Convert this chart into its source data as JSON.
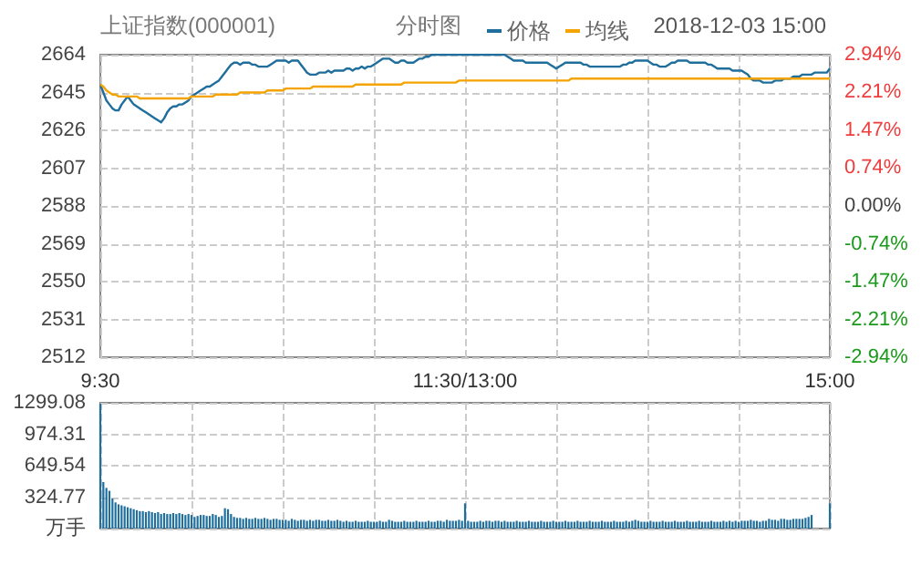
{
  "chart_data": [
    {
      "type": "line",
      "title": "上证指数(000001)",
      "subtitle": "分时图",
      "annotations": [
        "2018-12-03 15:00"
      ],
      "legend": "top right",
      "marker": "none",
      "grid": true,
      "categories": [
        "9:30",
        null,
        null,
        null,
        null,
        null,
        null,
        null,
        null,
        null,
        null,
        null,
        null,
        null,
        null,
        null,
        null,
        null,
        null,
        null,
        null,
        null,
        null,
        null,
        null,
        null,
        null,
        null,
        null,
        null,
        null,
        null,
        null,
        null,
        null,
        null,
        null,
        null,
        null,
        null,
        null,
        null,
        null,
        null,
        null,
        null,
        null,
        null,
        null,
        null,
        null,
        null,
        null,
        null,
        null,
        null,
        null,
        null,
        null,
        null,
        null,
        null,
        null,
        null,
        null,
        null,
        null,
        null,
        null,
        null,
        null,
        null,
        null,
        null,
        null,
        null,
        null,
        null,
        null,
        null,
        null,
        null,
        null,
        null,
        null,
        null,
        null,
        null,
        null,
        null,
        null,
        null,
        null,
        null,
        null,
        null,
        null,
        null,
        null,
        null,
        null,
        null,
        null,
        null,
        null,
        null,
        null,
        null,
        null,
        null,
        null,
        null,
        null,
        null,
        null,
        null,
        null,
        null,
        null,
        null,
        "11:30/13:00",
        null,
        null,
        null,
        null,
        null,
        null,
        null,
        null,
        null,
        null,
        null,
        null,
        null,
        null,
        null,
        null,
        null,
        null,
        null,
        null,
        null,
        null,
        null,
        null,
        null,
        null,
        null,
        null,
        null,
        null,
        null,
        null,
        null,
        null,
        null,
        null,
        null,
        null,
        null,
        null,
        null,
        null,
        null,
        null,
        null,
        null,
        null,
        null,
        null,
        null,
        null,
        null,
        null,
        null,
        null,
        null,
        null,
        null,
        null,
        null,
        null,
        null,
        null,
        null,
        null,
        null,
        null,
        null,
        null,
        null,
        null,
        null,
        null,
        null,
        null,
        null,
        null,
        null,
        null,
        null,
        null,
        null,
        null,
        null,
        null,
        null,
        null,
        null,
        null,
        null,
        null,
        null,
        null,
        null,
        null,
        null,
        null,
        null,
        null,
        null,
        null,
        null,
        null,
        null,
        null,
        null,
        null,
        null,
        null,
        null,
        null,
        null,
        null,
        null,
        null,
        null,
        null,
        null,
        null,
        "15:00"
      ],
      "ylim": [
        2512,
        2664
      ],
      "yticks": [
        2512,
        2531,
        2550,
        2569,
        2588,
        2607,
        2626,
        2645,
        2664
      ],
      "y2lim": [
        -2.94,
        2.94
      ],
      "y2ticks": [
        {
          "value": -2.94,
          "label": "-2.94%"
        },
        {
          "value": -2.21,
          "label": "-2.21%"
        },
        {
          "value": -1.47,
          "label": "-1.47%"
        },
        {
          "value": -0.74,
          "label": "-0.74%"
        },
        {
          "value": 0,
          "label": "0.00%"
        },
        {
          "value": 0.74,
          "label": "0.74%"
        },
        {
          "value": 1.47,
          "label": "1.47%"
        },
        {
          "value": 2.21,
          "label": "2.21%"
        },
        {
          "value": 2.94,
          "label": "2.94%"
        }
      ],
      "series": [
        {
          "name": "价格",
          "color": "#1f6e9c",
          "values": [
            2649,
            2645,
            2641,
            2639,
            2637,
            2636,
            2636,
            2639,
            2641,
            2643,
            2641,
            2639,
            2638,
            2637,
            2636,
            2635,
            2634,
            2633,
            2632,
            2631,
            2630,
            2632,
            2635,
            2637,
            2638,
            2638,
            2639,
            2639,
            2640,
            2641,
            2643,
            2644,
            2645,
            2646,
            2647,
            2648,
            2648,
            2649,
            2650,
            2651,
            2653,
            2655,
            2657,
            2659,
            2660,
            2660,
            2659,
            2660,
            2660,
            2660,
            2659,
            2659,
            2658,
            2658,
            2658,
            2658,
            2659,
            2660,
            2661,
            2661,
            2661,
            2661,
            2660,
            2661,
            2661,
            2661,
            2659,
            2657,
            2655,
            2654,
            2654,
            2654,
            2655,
            2655,
            2655,
            2656,
            2655,
            2656,
            2656,
            2656,
            2656,
            2657,
            2657,
            2656,
            2657,
            2657,
            2658,
            2657,
            2658,
            2658,
            2659,
            2660,
            2661,
            2662,
            2662,
            2662,
            2661,
            2660,
            2660,
            2661,
            2661,
            2660,
            2660,
            2660,
            2661,
            2662,
            2662,
            2663,
            2663,
            2664,
            2664,
            2664,
            2664,
            2664,
            2664,
            2664,
            2664,
            2664,
            2664,
            2664,
            2664,
            2664,
            2664,
            2664,
            2664,
            2664,
            2664,
            2664,
            2664,
            2664,
            2664,
            2664,
            2664,
            2664,
            2663,
            2662,
            2661,
            2661,
            2661,
            2661,
            2660,
            2660,
            2660,
            2660,
            2660,
            2660,
            2660,
            2660,
            2659,
            2658,
            2657,
            2658,
            2659,
            2660,
            2660,
            2660,
            2660,
            2660,
            2660,
            2659,
            2659,
            2658,
            2658,
            2658,
            2658,
            2658,
            2658,
            2658,
            2658,
            2658,
            2658,
            2658,
            2659,
            2659,
            2660,
            2660,
            2661,
            2661,
            2661,
            2661,
            2661,
            2660,
            2659,
            2659,
            2658,
            2658,
            2658,
            2659,
            2660,
            2660,
            2661,
            2661,
            2661,
            2661,
            2660,
            2660,
            2660,
            2660,
            2660,
            2660,
            2659,
            2659,
            2658,
            2657,
            2657,
            2657,
            2657,
            2657,
            2656,
            2656,
            2656,
            2656,
            2655,
            2654,
            2652,
            2651,
            2651,
            2651,
            2650,
            2650,
            2650,
            2650,
            2651,
            2651,
            2651,
            2652,
            2652,
            2652,
            2653,
            2653,
            2653,
            2654,
            2654,
            2654,
            2654,
            2655,
            2655,
            2655,
            2655,
            2655,
            2657
          ]
        },
        {
          "name": "均线",
          "color": "#f5a300",
          "values": [
            2649,
            2648,
            2646,
            2645,
            2644,
            2644,
            2643,
            2643,
            2643,
            2643,
            2643,
            2643,
            2643,
            2642,
            2642,
            2642,
            2642,
            2642,
            2642,
            2642,
            2642,
            2642,
            2642,
            2642,
            2642,
            2642,
            2642,
            2642,
            2642,
            2642,
            2643,
            2643,
            2643,
            2643,
            2643,
            2643,
            2643,
            2643,
            2644,
            2644,
            2644,
            2644,
            2644,
            2644,
            2644,
            2644,
            2645,
            2645,
            2645,
            2645,
            2645,
            2645,
            2645,
            2645,
            2645,
            2646,
            2646,
            2646,
            2646,
            2646,
            2646,
            2647,
            2647,
            2647,
            2647,
            2647,
            2647,
            2647,
            2647,
            2647,
            2648,
            2648,
            2648,
            2648,
            2648,
            2648,
            2648,
            2648,
            2648,
            2648,
            2648,
            2648,
            2648,
            2648,
            2649,
            2649,
            2649,
            2649,
            2649,
            2649,
            2649,
            2649,
            2649,
            2649,
            2649,
            2649,
            2649,
            2649,
            2649,
            2649,
            2650,
            2650,
            2650,
            2650,
            2650,
            2650,
            2650,
            2650,
            2650,
            2650,
            2650,
            2650,
            2650,
            2650,
            2650,
            2650,
            2650,
            2650,
            2651,
            2651,
            2651,
            2651,
            2651,
            2651,
            2651,
            2651,
            2651,
            2651,
            2651,
            2651,
            2651,
            2651,
            2651,
            2651,
            2651,
            2651,
            2651,
            2651,
            2651,
            2651,
            2651,
            2651,
            2651,
            2651,
            2651,
            2651,
            2651,
            2651,
            2651,
            2651,
            2651,
            2651,
            2651,
            2651,
            2651,
            2652,
            2652,
            2652,
            2652,
            2652,
            2652,
            2652,
            2652,
            2652,
            2652,
            2652,
            2652,
            2652,
            2652,
            2652,
            2652,
            2652,
            2652,
            2652,
            2652,
            2652,
            2652,
            2652,
            2652,
            2652,
            2652,
            2652,
            2652,
            2652,
            2652,
            2652,
            2652,
            2652,
            2652,
            2652,
            2652,
            2652,
            2652,
            2652,
            2652,
            2652,
            2652,
            2652,
            2652,
            2652,
            2652,
            2652,
            2652,
            2652,
            2652,
            2652,
            2652,
            2652,
            2652,
            2652,
            2652,
            2652,
            2652,
            2652,
            2652,
            2652,
            2652,
            2652,
            2652,
            2652,
            2652,
            2652,
            2652,
            2652,
            2652,
            2652,
            2652,
            2652,
            2652,
            2652,
            2652,
            2652,
            2652,
            2652,
            2652,
            2652,
            2652,
            2652,
            2652,
            2652,
            2652
          ]
        }
      ]
    },
    {
      "type": "bar",
      "color": "#1f6e9c",
      "grid": true,
      "ylim": [
        0,
        1299.08
      ],
      "yticks": [
        {
          "value": 0,
          "label": "万手"
        },
        324.77,
        649.54,
        974.31,
        1299.08
      ],
      "categories": [
        null,
        null,
        null,
        null,
        null,
        null,
        null,
        null,
        null,
        null,
        null,
        null,
        null,
        null,
        null,
        null,
        null,
        null,
        null,
        null,
        null,
        null,
        null,
        null,
        null,
        null,
        null,
        null,
        null,
        null,
        null,
        null,
        null,
        null,
        null,
        null,
        null,
        null,
        null,
        null,
        null,
        null,
        null,
        null,
        null,
        null,
        null,
        null,
        null,
        null,
        null,
        null,
        null,
        null,
        null,
        null,
        null,
        null,
        null,
        null,
        null,
        null,
        null,
        null,
        null,
        null,
        null,
        null,
        null,
        null,
        null,
        null,
        null,
        null,
        null,
        null,
        null,
        null,
        null,
        null,
        null,
        null,
        null,
        null,
        null,
        null,
        null,
        null,
        null,
        null,
        null,
        null,
        null,
        null,
        null,
        null,
        null,
        null,
        null,
        null,
        null,
        null,
        null,
        null,
        null,
        null,
        null,
        null,
        null,
        null,
        null,
        null,
        null,
        null,
        null,
        null,
        null,
        null,
        null,
        null,
        null,
        null,
        null,
        null,
        null,
        null,
        null,
        null,
        null,
        null,
        null,
        null,
        null,
        null,
        null,
        null,
        null,
        null,
        null,
        null,
        null,
        null,
        null,
        null,
        null,
        null,
        null,
        null,
        null,
        null,
        null,
        null,
        null,
        null,
        null,
        null,
        null,
        null,
        null,
        null,
        null,
        null,
        null,
        null,
        null,
        null,
        null,
        null,
        null,
        null,
        null,
        null,
        null,
        null,
        null,
        null,
        null,
        null,
        null,
        null,
        null,
        null,
        null,
        null,
        null,
        null,
        null,
        null,
        null,
        null,
        null,
        null,
        null,
        null,
        null,
        null,
        null,
        null,
        null,
        null,
        null,
        null,
        null,
        null,
        null,
        null,
        null,
        null,
        null,
        null,
        null,
        null,
        null,
        null,
        null,
        null,
        null,
        null,
        null,
        null,
        null,
        null,
        null,
        null,
        null,
        null,
        null,
        null,
        null,
        null,
        null,
        null,
        null,
        null,
        null,
        null,
        null,
        null,
        null,
        null,
        null
      ],
      "values": [
        1290,
        480,
        420,
        390,
        310,
        270,
        250,
        240,
        230,
        220,
        210,
        200,
        190,
        180,
        180,
        170,
        180,
        170,
        160,
        170,
        150,
        160,
        150,
        150,
        160,
        150,
        160,
        150,
        140,
        150,
        140,
        120,
        130,
        140,
        140,
        130,
        130,
        150,
        140,
        120,
        130,
        210,
        200,
        150,
        120,
        110,
        110,
        100,
        110,
        100,
        100,
        110,
        100,
        100,
        110,
        100,
        90,
        100,
        100,
        90,
        90,
        90,
        80,
        100,
        90,
        80,
        90,
        90,
        80,
        90,
        80,
        90,
        90,
        80,
        80,
        90,
        80,
        80,
        90,
        80,
        70,
        80,
        70,
        70,
        80,
        70,
        70,
        70,
        80,
        70,
        70,
        70,
        80,
        70,
        70,
        90,
        80,
        70,
        70,
        70,
        80,
        70,
        70,
        70,
        80,
        70,
        70,
        70,
        80,
        70,
        70,
        80,
        80,
        70,
        90,
        80,
        80,
        80,
        90,
        80,
        260,
        80,
        70,
        70,
        70,
        80,
        70,
        80,
        80,
        70,
        80,
        80,
        70,
        80,
        70,
        70,
        70,
        80,
        70,
        70,
        70,
        80,
        70,
        70,
        70,
        80,
        70,
        70,
        70,
        80,
        70,
        70,
        70,
        80,
        70,
        70,
        70,
        80,
        70,
        70,
        70,
        80,
        70,
        70,
        70,
        80,
        70,
        70,
        70,
        80,
        70,
        70,
        70,
        80,
        70,
        80,
        90,
        80,
        70,
        70,
        70,
        80,
        70,
        70,
        70,
        80,
        70,
        70,
        70,
        80,
        70,
        70,
        70,
        80,
        70,
        70,
        70,
        80,
        70,
        70,
        70,
        80,
        70,
        70,
        70,
        80,
        70,
        80,
        70,
        80,
        70,
        80,
        80,
        80,
        90,
        80,
        80,
        70,
        80,
        80,
        100,
        90,
        90,
        80,
        100,
        100,
        90,
        90,
        100,
        100,
        100,
        100,
        110,
        120,
        140,
        null,
        null,
        null,
        null,
        null,
        260
      ]
    }
  ]
}
